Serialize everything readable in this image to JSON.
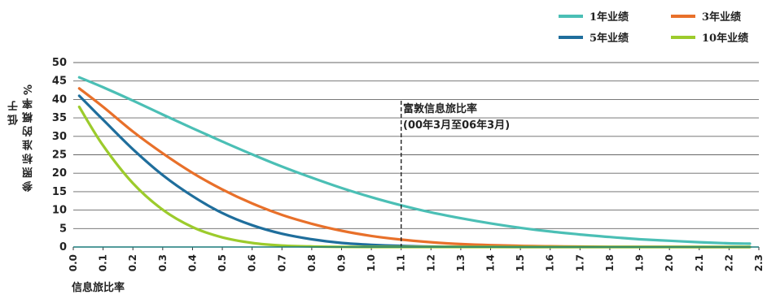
{
  "chart_data": {
    "type": "line",
    "title": "",
    "xlabel": "信息旅比率",
    "ylabel_lines": [
      "低于",
      "参照标准的概率%"
    ],
    "xlim": [
      0,
      2.3
    ],
    "ylim": [
      0,
      50
    ],
    "x_ticks": [
      "0.0",
      "0.1",
      "0.2",
      "0.3",
      "0.4",
      "0.5",
      "0.6",
      "0.7",
      "0.8",
      "0.9",
      "1.0",
      "1.1",
      "1.2",
      "1.3",
      "1.4",
      "1.5",
      "1.6",
      "1.7",
      "1.8",
      "1.9",
      "2.0",
      "2.1",
      "2.2",
      "2.3"
    ],
    "y_ticks": [
      "0",
      "5",
      "10",
      "15",
      "20",
      "25",
      "30",
      "35",
      "40",
      "45",
      "50"
    ],
    "grid": "horizontal",
    "legend_position": "top-right",
    "series": [
      {
        "name": "1年业绩",
        "color": "#4bbfb5",
        "x": [
          0.02,
          0.1,
          0.2,
          0.3,
          0.4,
          0.5,
          0.6,
          0.7,
          0.8,
          0.9,
          1.0,
          1.1,
          1.2,
          1.3,
          1.4,
          1.5,
          1.6,
          1.7,
          1.8,
          1.9,
          2.0,
          2.1,
          2.2,
          2.27
        ],
        "y": [
          46,
          43.3,
          39.7,
          35.9,
          32.2,
          28.6,
          25.1,
          21.8,
          18.8,
          16,
          13.5,
          11.3,
          9.4,
          7.8,
          6.4,
          5.2,
          4.2,
          3.4,
          2.7,
          2.1,
          1.7,
          1.3,
          1,
          0.9
        ]
      },
      {
        "name": "3年业绩",
        "color": "#e8702a",
        "x": [
          0.02,
          0.1,
          0.2,
          0.3,
          0.4,
          0.5,
          0.6,
          0.7,
          0.8,
          0.9,
          1.0,
          1.1,
          1.2,
          1.3,
          1.4,
          1.5,
          1.6,
          1.7,
          1.8,
          1.9,
          2.0,
          2.1,
          2.2,
          2.27
        ],
        "y": [
          43,
          38,
          31.3,
          25.4,
          20.1,
          15.6,
          11.8,
          8.7,
          6.3,
          4.4,
          3,
          2,
          1.3,
          0.8,
          0.5,
          0.3,
          0.2,
          0.1,
          0.05,
          0.03,
          0.02,
          0.01,
          0,
          0
        ]
      },
      {
        "name": "5年业绩",
        "color": "#1f6e9c",
        "x": [
          0.02,
          0.1,
          0.2,
          0.3,
          0.4,
          0.5,
          0.6,
          0.7,
          0.8,
          0.9,
          1.0,
          1.1,
          1.2,
          1.4,
          1.6,
          1.8,
          2.0,
          2.27
        ],
        "y": [
          41,
          34.5,
          26.5,
          19.5,
          13.8,
          9.2,
          5.9,
          3.6,
          2.1,
          1.1,
          0.6,
          0.3,
          0.1,
          0.02,
          0,
          0,
          0,
          0
        ]
      },
      {
        "name": "10年业绩",
        "color": "#9ccb2c",
        "x": [
          0.02,
          0.1,
          0.2,
          0.3,
          0.4,
          0.5,
          0.6,
          0.7,
          0.8,
          0.9,
          1.0,
          1.2,
          1.5,
          2.0,
          2.27
        ],
        "y": [
          38,
          27.5,
          17.3,
          10.1,
          5.4,
          2.6,
          1.1,
          0.4,
          0.15,
          0.05,
          0.01,
          0,
          0,
          0,
          0
        ]
      }
    ],
    "annotation": {
      "x": 1.1,
      "lines": [
        "富敦信息旅比率",
        "(00年3月至06年3月)"
      ]
    }
  }
}
